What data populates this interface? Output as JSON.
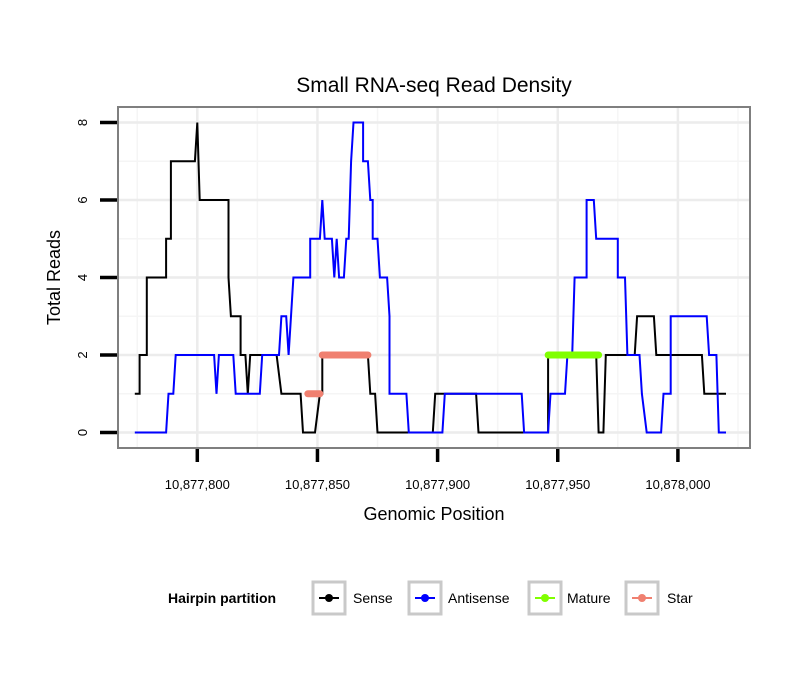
{
  "chart_data": {
    "type": "line",
    "title": "Small RNA-seq Read Density",
    "xlabel": "Genomic Position",
    "ylabel": "Total Reads",
    "xlim": [
      10877767,
      10878030
    ],
    "ylim": [
      -0.4,
      8.4
    ],
    "xticks": [
      10877800,
      10877850,
      10877900,
      10877950,
      10878000
    ],
    "xtick_labels": [
      "10,877,800",
      "10,877,850",
      "10,877,900",
      "10,877,950",
      "10,878,000"
    ],
    "yticks": [
      0,
      2,
      4,
      6,
      8
    ],
    "ytick_labels": [
      "0",
      "2",
      "4",
      "6",
      "8"
    ],
    "grid": true,
    "legend": {
      "title": "Hairpin partition",
      "position": "bottom",
      "entries": [
        "Sense",
        "Antisense",
        "Mature",
        "Star"
      ]
    },
    "series": [
      {
        "name": "Sense",
        "color": "#000000",
        "style": "step-line",
        "points": [
          [
            10877774,
            1
          ],
          [
            10877776,
            1
          ],
          [
            10877776,
            2
          ],
          [
            10877779,
            2
          ],
          [
            10877779,
            4
          ],
          [
            10877787,
            4
          ],
          [
            10877787,
            5
          ],
          [
            10877789,
            5
          ],
          [
            10877789,
            7
          ],
          [
            10877795,
            7
          ],
          [
            10877795,
            7
          ],
          [
            10877799,
            7
          ],
          [
            10877800,
            8
          ],
          [
            10877801,
            6
          ],
          [
            10877813,
            6
          ],
          [
            10877813,
            4
          ],
          [
            10877814,
            3
          ],
          [
            10877818,
            3
          ],
          [
            10877818,
            2
          ],
          [
            10877820,
            2
          ],
          [
            10877821,
            1
          ],
          [
            10877822,
            2
          ],
          [
            10877833,
            2
          ],
          [
            10877835,
            1
          ],
          [
            10877843,
            1
          ],
          [
            10877844,
            0
          ],
          [
            10877849,
            0
          ],
          [
            10877851,
            1
          ],
          [
            10877852,
            1
          ],
          [
            10877852,
            2
          ],
          [
            10877871,
            2
          ],
          [
            10877872,
            1
          ],
          [
            10877874,
            1
          ],
          [
            10877875,
            0
          ],
          [
            10877898,
            0
          ],
          [
            10877899,
            1
          ],
          [
            10877916,
            1
          ],
          [
            10877917,
            0
          ],
          [
            10877946,
            0
          ],
          [
            10877946,
            2
          ],
          [
            10877966,
            2
          ],
          [
            10877967,
            0
          ],
          [
            10877969,
            0
          ],
          [
            10877970,
            2
          ],
          [
            10877982,
            2
          ],
          [
            10877983,
            3
          ],
          [
            10877990,
            3
          ],
          [
            10877991,
            2
          ],
          [
            10878010,
            2
          ],
          [
            10878011,
            1
          ],
          [
            10878020,
            1
          ]
        ]
      },
      {
        "name": "Antisense",
        "color": "#0000ff",
        "style": "step-line",
        "points": [
          [
            10877774,
            0
          ],
          [
            10877787,
            0
          ],
          [
            10877788,
            1
          ],
          [
            10877790,
            1
          ],
          [
            10877791,
            2
          ],
          [
            10877807,
            2
          ],
          [
            10877808,
            1
          ],
          [
            10877808,
            1
          ],
          [
            10877809,
            2
          ],
          [
            10877815,
            2
          ],
          [
            10877816,
            1
          ],
          [
            10877826,
            1
          ],
          [
            10877827,
            2
          ],
          [
            10877834,
            2
          ],
          [
            10877835,
            3
          ],
          [
            10877837,
            3
          ],
          [
            10877838,
            2
          ],
          [
            10877839,
            3
          ],
          [
            10877840,
            4
          ],
          [
            10877847,
            4
          ],
          [
            10877847,
            5
          ],
          [
            10877849,
            5
          ],
          [
            10877851,
            5
          ],
          [
            10877852,
            6
          ],
          [
            10877853,
            5
          ],
          [
            10877856,
            5
          ],
          [
            10877857,
            4
          ],
          [
            10877858,
            5
          ],
          [
            10877859,
            4
          ],
          [
            10877861,
            4
          ],
          [
            10877862,
            5
          ],
          [
            10877863,
            5
          ],
          [
            10877864,
            7
          ],
          [
            10877865,
            8
          ],
          [
            10877869,
            8
          ],
          [
            10877869,
            7
          ],
          [
            10877871,
            7
          ],
          [
            10877872,
            6
          ],
          [
            10877873,
            6
          ],
          [
            10877873,
            5
          ],
          [
            10877875,
            5
          ],
          [
            10877876,
            4
          ],
          [
            10877879,
            4
          ],
          [
            10877880,
            3
          ],
          [
            10877880,
            1
          ],
          [
            10877887,
            1
          ],
          [
            10877888,
            0
          ],
          [
            10877902,
            0
          ],
          [
            10877903,
            1
          ],
          [
            10877935,
            1
          ],
          [
            10877936,
            0
          ],
          [
            10877946,
            0
          ],
          [
            10877947,
            1
          ],
          [
            10877953,
            1
          ],
          [
            10877954,
            2
          ],
          [
            10877956,
            2
          ],
          [
            10877957,
            4
          ],
          [
            10877962,
            4
          ],
          [
            10877962,
            6
          ],
          [
            10877965,
            6
          ],
          [
            10877966,
            5
          ],
          [
            10877975,
            5
          ],
          [
            10877975,
            4
          ],
          [
            10877978,
            4
          ],
          [
            10877979,
            2
          ],
          [
            10877984,
            2
          ],
          [
            10877985,
            1
          ],
          [
            10877987,
            0
          ],
          [
            10877993,
            0
          ],
          [
            10877994,
            1
          ],
          [
            10877997,
            1
          ],
          [
            10877997,
            3
          ],
          [
            10878012,
            3
          ],
          [
            10878013,
            2
          ],
          [
            10878016,
            2
          ],
          [
            10878017,
            0
          ],
          [
            10878020,
            0
          ]
        ]
      },
      {
        "name": "Mature",
        "color": "#80ff00",
        "style": "segment",
        "x": [
          10877946,
          10877967
        ],
        "y": 2
      },
      {
        "name": "Star",
        "color": "#f08070",
        "style": "segment",
        "segments": [
          {
            "x": [
              10877852,
              10877871
            ],
            "y": 2
          },
          {
            "x": [
              10877846,
              10877851
            ],
            "y": 1
          }
        ]
      }
    ]
  }
}
